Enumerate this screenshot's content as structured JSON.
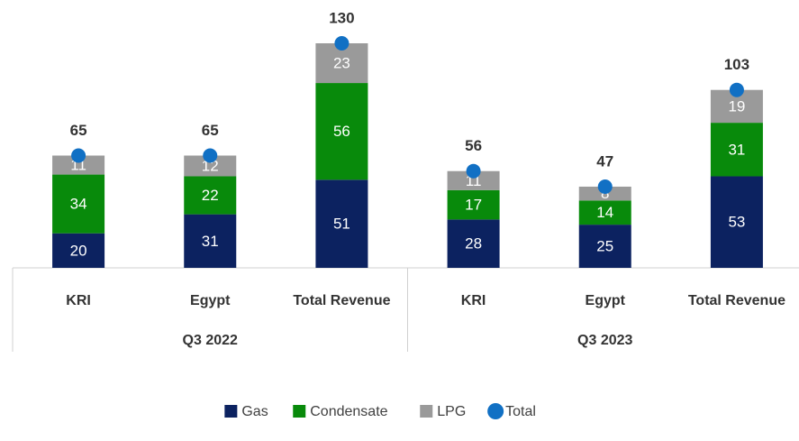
{
  "chart_data": {
    "type": "stacked_bar",
    "categories": [
      "KRI",
      "Egypt",
      "Total Revenue",
      "KRI",
      "Egypt",
      "Total Revenue"
    ],
    "groups": [
      "Q3 2022",
      "Q3 2023"
    ],
    "series": [
      {
        "name": "Gas",
        "color": "#0c2260",
        "values": [
          20,
          31,
          51,
          28,
          25,
          53
        ]
      },
      {
        "name": "Condensate",
        "color": "#088a0b",
        "values": [
          34,
          22,
          56,
          17,
          14,
          31
        ]
      },
      {
        "name": "LPG",
        "color": "#9a9a9a",
        "values": [
          11,
          12,
          23,
          11,
          8,
          19
        ]
      }
    ],
    "total": {
      "name": "Total",
      "color": "#1170c4",
      "values": [
        65,
        65,
        130,
        56,
        47,
        103
      ]
    },
    "legend": "bottom"
  }
}
